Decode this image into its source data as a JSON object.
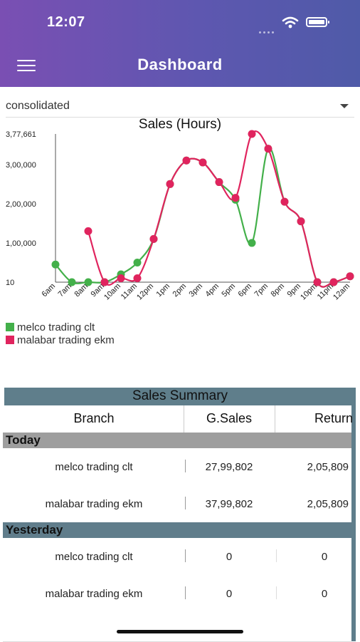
{
  "status_bar": {
    "time": "12:07"
  },
  "header": {
    "title": "Dashboard"
  },
  "filter": {
    "selected": "consolidated"
  },
  "chart_data": {
    "type": "line",
    "title": "Sales (Hours)",
    "categories": [
      "6am",
      "7am",
      "8am",
      "9am",
      "10am",
      "11am",
      "12pm",
      "1pm",
      "2pm",
      "3pm",
      "4pm",
      "5pm",
      "6pm",
      "7pm",
      "8pm",
      "9pm",
      "10pm",
      "11pm",
      "12am"
    ],
    "y_tick_labels": [
      "10",
      "1,00,000",
      "2,00,000",
      "3,00,000",
      "3,77,661"
    ],
    "ylim": [
      10,
      377661
    ],
    "series": [
      {
        "name": "melco trading clt",
        "color": "#43b04a",
        "values": [
          45000,
          0,
          0,
          0,
          20000,
          50000,
          110000,
          250000,
          310000,
          305000,
          255000,
          210000,
          100000,
          340000,
          205000,
          155000,
          0,
          0,
          15000
        ]
      },
      {
        "name": "malabar trading ekm",
        "color": "#e0245e",
        "values": [
          null,
          null,
          130000,
          0,
          10000,
          10000,
          110000,
          250000,
          310000,
          305000,
          255000,
          215000,
          377661,
          340000,
          205000,
          155000,
          0,
          0,
          15000
        ]
      }
    ],
    "grid": false
  },
  "summary": {
    "title": "Sales Summary",
    "columns": {
      "branch": "Branch",
      "gsales": "G.Sales",
      "return": "Return"
    },
    "sections": [
      {
        "label": "Today",
        "rows": [
          {
            "branch": "melco trading clt",
            "gsales": "27,99,802",
            "return": "2,05,809"
          },
          {
            "branch": "malabar trading ekm",
            "gsales": "37,99,802",
            "return": "2,05,809"
          }
        ]
      },
      {
        "label": "Yesterday",
        "rows": [
          {
            "branch": "melco trading clt",
            "gsales": "0",
            "return": "0"
          },
          {
            "branch": "malabar trading ekm",
            "gsales": "0",
            "return": "0"
          }
        ]
      }
    ]
  },
  "icons": {
    "menu": "hamburger-menu-icon",
    "dropdown": "chevron-down-icon",
    "wifi": "wifi-icon",
    "battery": "battery-icon"
  }
}
